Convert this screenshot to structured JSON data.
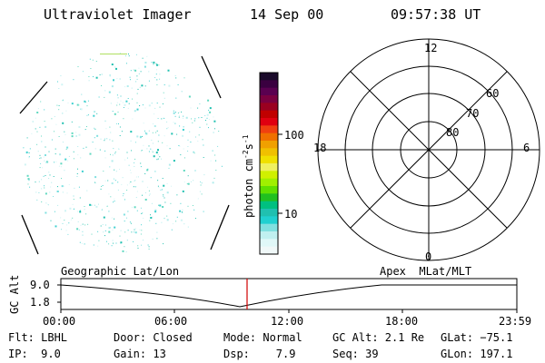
{
  "header": {
    "instrument": "Ultraviolet Imager",
    "date": "14 Sep 00",
    "time": "09:57:38 UT"
  },
  "colorbar": {
    "label": "photon cm",
    "label_sup1": "-2",
    "label_mid": "s",
    "label_sup2": "-1",
    "ticks": [
      "100",
      "10"
    ],
    "colors": [
      "#1a0a2a",
      "#3a0040",
      "#5a0050",
      "#7a0040",
      "#9a0020",
      "#c00000",
      "#e00010",
      "#f04010",
      "#f07000",
      "#f0a000",
      "#f0c000",
      "#f0e000",
      "#f0f060",
      "#d0f000",
      "#a0f000",
      "#60e000",
      "#20c020",
      "#00c080",
      "#20c0b0",
      "#20d0d0",
      "#80e0e0",
      "#c0f0f0",
      "#e0f8f8",
      "#f0f8f8"
    ]
  },
  "polar_plot": {
    "mlt_labels": {
      "top": "12",
      "bottom": "0",
      "left": "18",
      "right": "6"
    },
    "lat_labels": [
      "80",
      "70",
      "60"
    ]
  },
  "timeline": {
    "ylabel": "GC Alt",
    "y_ticks": [
      "9.0",
      "1.8"
    ],
    "left_title": "Geographic Lat/Lon",
    "right_title": "Apex  MLat/MLT",
    "x_ticks": [
      "00:00",
      "06:00",
      "12:00",
      "18:00",
      "23:59"
    ],
    "marker_color": "#d00000"
  },
  "footer": {
    "row1": [
      "Flt: LBHL",
      "Door: Closed",
      "Mode: Normal",
      "GC Alt: 2.1 Re",
      "GLat: −75.1"
    ],
    "row2": [
      "IP:  9.0",
      "Gain: 13",
      "Dsp:    7.9",
      "Seq: 39",
      "GLon: 197.1"
    ]
  }
}
